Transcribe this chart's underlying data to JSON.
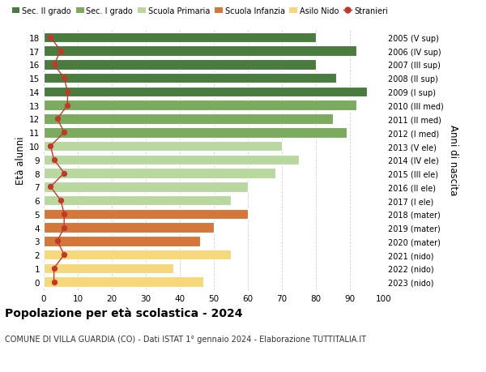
{
  "ages": [
    18,
    17,
    16,
    15,
    14,
    13,
    12,
    11,
    10,
    9,
    8,
    7,
    6,
    5,
    4,
    3,
    2,
    1,
    0
  ],
  "values": [
    80,
    92,
    80,
    86,
    95,
    92,
    85,
    89,
    70,
    75,
    68,
    60,
    55,
    60,
    50,
    46,
    55,
    38,
    47
  ],
  "stranieri": [
    2,
    5,
    3,
    6,
    7,
    7,
    4,
    6,
    2,
    3,
    6,
    2,
    5,
    6,
    6,
    4,
    6,
    3,
    3
  ],
  "right_labels": [
    "2005 (V sup)",
    "2006 (IV sup)",
    "2007 (III sup)",
    "2008 (II sup)",
    "2009 (I sup)",
    "2010 (III med)",
    "2011 (II med)",
    "2012 (I med)",
    "2013 (V ele)",
    "2014 (IV ele)",
    "2015 (III ele)",
    "2016 (II ele)",
    "2017 (I ele)",
    "2018 (mater)",
    "2019 (mater)",
    "2020 (mater)",
    "2021 (nido)",
    "2022 (nido)",
    "2023 (nido)"
  ],
  "bar_colors": [
    "#4a7c3f",
    "#4a7c3f",
    "#4a7c3f",
    "#4a7c3f",
    "#4a7c3f",
    "#7aab5e",
    "#7aab5e",
    "#7aab5e",
    "#b8d8a0",
    "#b8d8a0",
    "#b8d8a0",
    "#b8d8a0",
    "#b8d8a0",
    "#d4773a",
    "#d4773a",
    "#d4773a",
    "#f5d87a",
    "#f5d87a",
    "#f5d87a"
  ],
  "legend_labels": [
    "Sec. II grado",
    "Sec. I grado",
    "Scuola Primaria",
    "Scuola Infanzia",
    "Asilo Nido",
    "Stranieri"
  ],
  "legend_colors": [
    "#4a7c3f",
    "#7aab5e",
    "#b8d8a0",
    "#d4773a",
    "#f5d87a",
    "#c0392b"
  ],
  "title": "Popolazione per età scolastica - 2024",
  "subtitle": "COMUNE DI VILLA GUARDIA (CO) - Dati ISTAT 1° gennaio 2024 - Elaborazione TUTTITALIA.IT",
  "ylabel_left": "Età alunni",
  "ylabel_right": "Anni di nascita",
  "xlim": [
    0,
    100
  ],
  "xticks": [
    0,
    10,
    20,
    30,
    40,
    50,
    60,
    70,
    80,
    90,
    100
  ],
  "background_color": "#ffffff",
  "stranieri_color": "#c0392b",
  "grid_color": "#cccccc"
}
